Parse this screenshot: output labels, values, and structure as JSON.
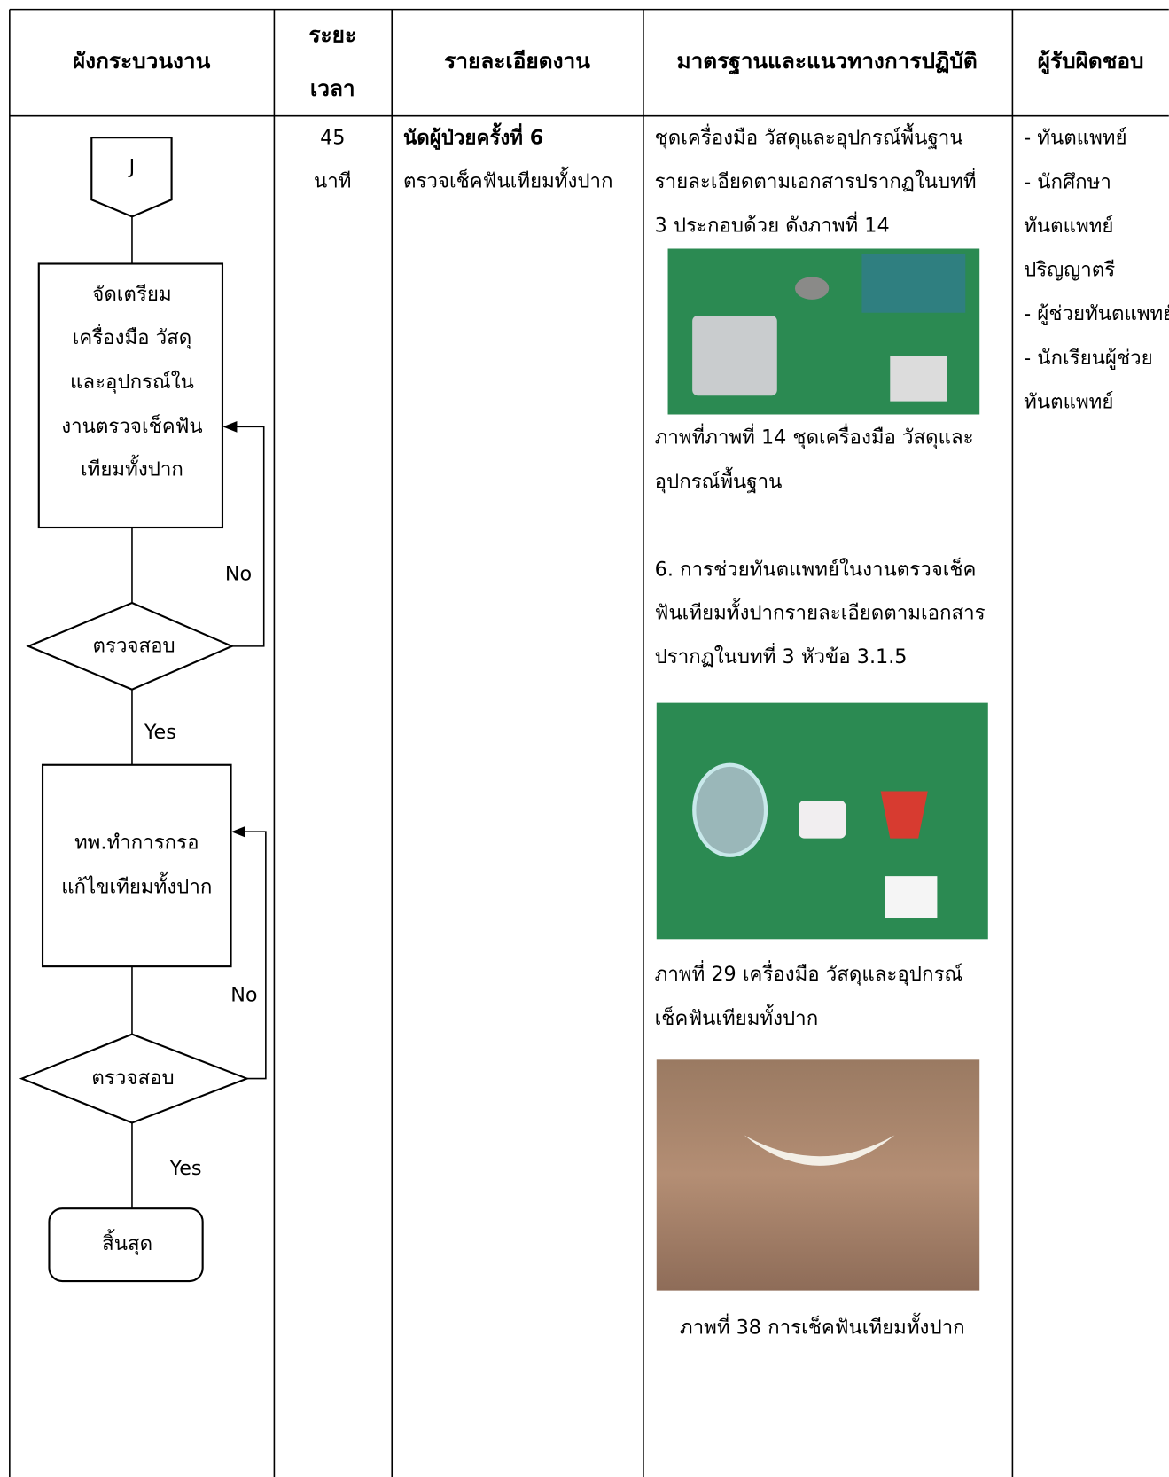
{
  "header": {
    "columns": [
      [
        "ผังกระบวนงาน"
      ],
      [
        "ระยะ",
        "เวลา"
      ],
      [
        "รายละเอียดงาน"
      ],
      [
        "มาตรฐานและแนวทางการปฏิบัติ"
      ],
      [
        "ผู้รับผิดชอบ"
      ]
    ]
  },
  "flowchart": {
    "nodes": [
      {
        "label_lines": [
          "J"
        ]
      },
      {
        "label_lines": [
          "จัดเตรียม",
          "เครื่องมือ วัสดุ",
          "และอุปกรณ์ใน",
          "งานตรวจเช็คฟัน",
          "เทียมทั้งปาก"
        ]
      },
      {
        "label_lines": [
          "ตรวจสอบ"
        ]
      },
      {
        "label_lines": [
          "ทพ.ทำการกรอ",
          "แก้ไขเทียมทั้งปาก"
        ]
      },
      {
        "label_lines": [
          "ตรวจสอบ"
        ]
      },
      {
        "label_lines": [
          "สิ้นสุด"
        ]
      }
    ],
    "edge_labels": [
      "No",
      "Yes",
      "No",
      "Yes"
    ]
  },
  "row": {
    "time": [
      "45",
      "นาที"
    ],
    "details": [
      "นัดผู้ป่วยครั้งที่ 6",
      "ตรวจเช็คฟันเทียมทั้งปาก"
    ],
    "standards": {
      "intro": [
        "ชุดเครื่องมือ วัสดุและอุปกรณ์พื้นฐาน",
        "รายละเอียดตามเอกสารปรากฏในบทที่",
        "3 ประกอบด้วย ดังภาพที่ 14"
      ],
      "figure_14_caption": [
        "ภาพที่ภาพที่ 14 ชุดเครื่องมือ วัสดุและ",
        "อุปกรณ์พื้นฐาน"
      ],
      "section_6": [
        "6. การช่วยทันตแพทย์ในงานตรวจเช็ค",
        "ฟันเทียมทั้งปากรายละเอียดตามเอกสาร",
        "ปรากฏในบทที่ 3 หัวข้อ 3.1.5"
      ],
      "figure_29_caption": [
        "ภาพที่ 29 เครื่องมือ วัสดุและอุปกรณ์",
        "เช็คฟันเทียมทั้งปาก"
      ],
      "figure_38_caption": "ภาพที่ 38 การเช็คฟันเทียมทั้งปาก"
    },
    "responsible": [
      "- ทันตแพทย์",
      "- นักศึกษา",
      "ทันตแพทย์",
      "ปริญญาตรี",
      "- ผู้ช่วยทันตแพทย์",
      "- นักเรียนผู้ช่วย",
      "ทันตแพทย์"
    ]
  }
}
